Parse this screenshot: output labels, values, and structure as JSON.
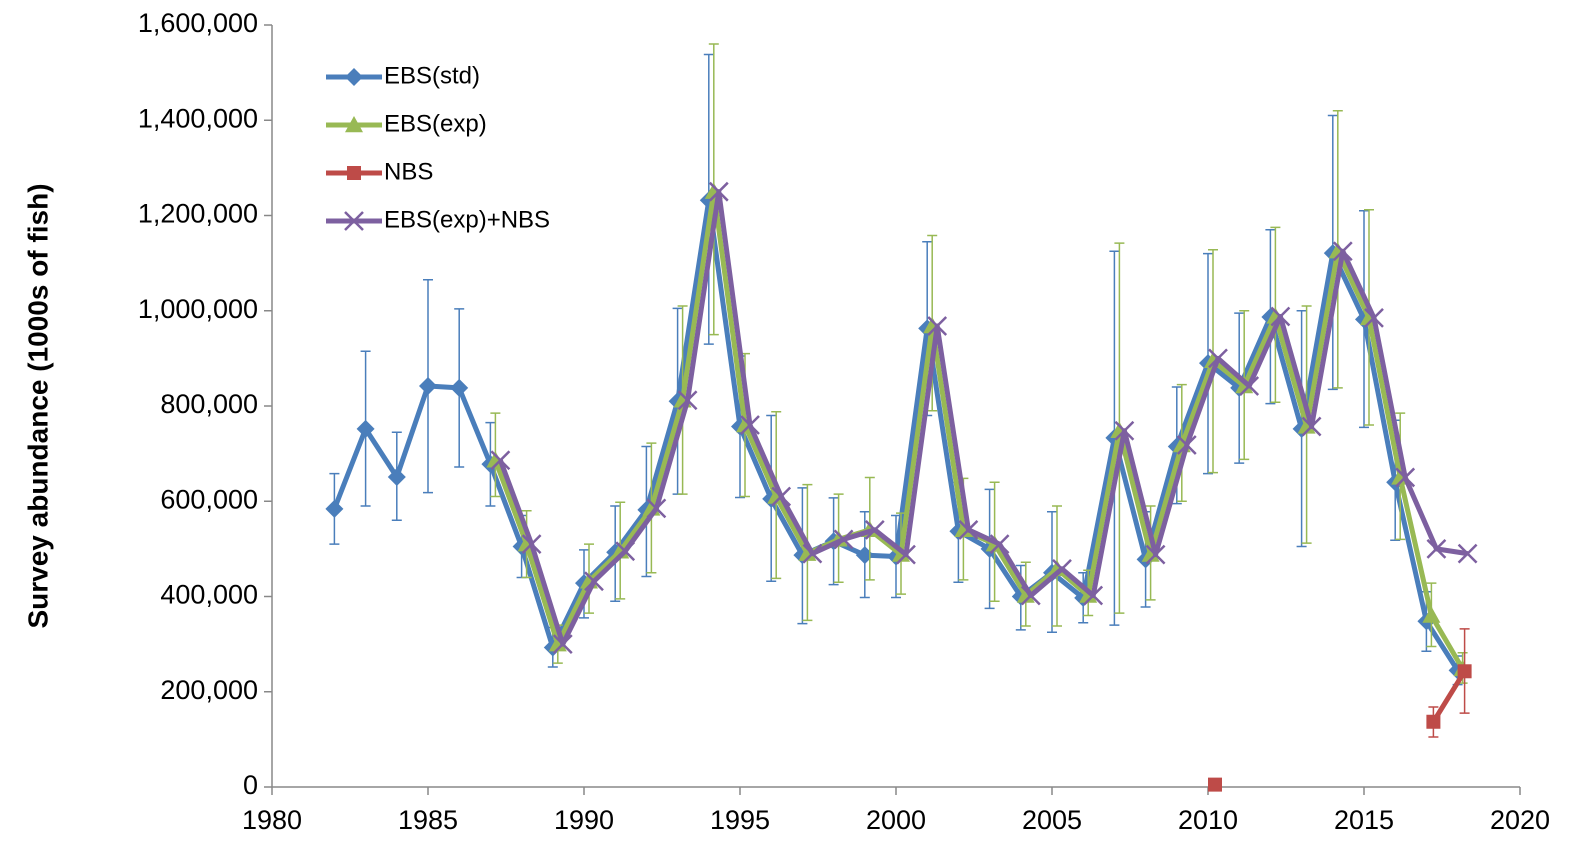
{
  "chart_data": {
    "type": "line",
    "ylabel": "Survey abundance (1000s of fish)",
    "xlim": [
      1980,
      2020
    ],
    "xticks": [
      1980,
      1985,
      1990,
      1995,
      2000,
      2005,
      2010,
      2015,
      2020
    ],
    "ylim": [
      0,
      1600000
    ],
    "yticks": [
      0,
      {
        "value": 200000,
        "label": "200,000"
      },
      {
        "value": 400000,
        "label": "400,000"
      },
      {
        "value": 600000,
        "label": "600,000"
      },
      {
        "value": 800000,
        "label": "800,000"
      },
      {
        "value": 1000000,
        "label": "1,000,000"
      },
      {
        "value": 1200000,
        "label": "1,200,000"
      },
      {
        "value": 1400000,
        "label": "1,400,000"
      },
      {
        "value": 1600000,
        "label": "1,600,000"
      }
    ],
    "grid": false,
    "legend": "upper left",
    "series": [
      {
        "name": "EBS(std)",
        "color": "#4a7ebb",
        "marker": "diamond",
        "x": [
          1982,
          1983,
          1984,
          1985,
          1986,
          1987,
          1988,
          1989,
          1990,
          1991,
          1992,
          1993,
          1994,
          1995,
          1996,
          1997,
          1998,
          1999,
          2000,
          2001,
          2002,
          2003,
          2004,
          2005,
          2006,
          2007,
          2008,
          2009,
          2010,
          2011,
          2012,
          2013,
          2014,
          2015,
          2016,
          2017,
          2018
        ],
        "values": [
          584000,
          752000,
          651000,
          842000,
          838000,
          678000,
          505000,
          293000,
          428000,
          493000,
          582000,
          810000,
          1232000,
          757000,
          605000,
          487000,
          516000,
          487000,
          484000,
          963000,
          537000,
          500000,
          400000,
          450000,
          397000,
          733000,
          478000,
          715000,
          890000,
          838000,
          987000,
          752000,
          1121000,
          982000,
          640000,
          348000,
          245000
        ],
        "ylow": [
          510000,
          590000,
          560000,
          618000,
          672000,
          590000,
          440000,
          252000,
          355000,
          390000,
          442000,
          615000,
          930000,
          608000,
          432000,
          343000,
          425000,
          398000,
          398000,
          780000,
          430000,
          375000,
          330000,
          325000,
          345000,
          340000,
          378000,
          595000,
          658000,
          680000,
          805000,
          505000,
          835000,
          755000,
          518000,
          285000,
          215000
        ],
        "yhigh": [
          658000,
          915000,
          745000,
          1065000,
          1004000,
          765000,
          570000,
          335000,
          498000,
          590000,
          715000,
          1005000,
          1538000,
          905000,
          780000,
          628000,
          607000,
          578000,
          570000,
          1145000,
          640000,
          625000,
          465000,
          578000,
          450000,
          1125000,
          578000,
          840000,
          1120000,
          995000,
          1170000,
          1000000,
          1410000,
          1210000,
          770000,
          410000,
          275000
        ]
      },
      {
        "name": "EBS(exp)",
        "color": "#98b954",
        "marker": "triangle",
        "x": [
          1987,
          1988,
          1989,
          1990,
          1991,
          1992,
          1993,
          1994,
          1995,
          1996,
          1997,
          1998,
          1999,
          2000,
          2001,
          2002,
          2003,
          2004,
          2005,
          2006,
          2007,
          2008,
          2009,
          2010,
          2011,
          2012,
          2013,
          2014,
          2015,
          2016,
          2017,
          2018
        ],
        "values": [
          686000,
          510000,
          300000,
          432000,
          495000,
          585000,
          812000,
          1250000,
          760000,
          610000,
          490000,
          520000,
          540000,
          488000,
          968000,
          540000,
          510000,
          402000,
          458000,
          402000,
          748000,
          488000,
          718000,
          895000,
          842000,
          988000,
          757000,
          1125000,
          985000,
          650000,
          360000,
          248000
        ],
        "ylow": [
          610000,
          440000,
          260000,
          365000,
          395000,
          450000,
          615000,
          950000,
          610000,
          438000,
          350000,
          430000,
          435000,
          405000,
          790000,
          435000,
          390000,
          338000,
          338000,
          360000,
          365000,
          393000,
          600000,
          660000,
          688000,
          808000,
          512000,
          838000,
          760000,
          520000,
          295000,
          218000
        ],
        "yhigh": [
          785000,
          580000,
          340000,
          510000,
          598000,
          722000,
          1010000,
          1560000,
          910000,
          788000,
          635000,
          615000,
          650000,
          575000,
          1158000,
          648000,
          640000,
          472000,
          590000,
          455000,
          1142000,
          590000,
          845000,
          1128000,
          1000000,
          1175000,
          1010000,
          1420000,
          1212000,
          785000,
          428000,
          282000
        ]
      },
      {
        "name": "NBS",
        "color": "#be4b48",
        "marker": "square",
        "x": [
          2010,
          2011,
          2012,
          2013,
          2014,
          2015,
          2016,
          2017,
          2018
        ],
        "values": [
          5000,
          null,
          null,
          null,
          null,
          null,
          null,
          137000,
          243000
        ],
        "ylow": [
          5000,
          null,
          null,
          null,
          null,
          null,
          null,
          105000,
          155000
        ],
        "yhigh": [
          5000,
          null,
          null,
          null,
          null,
          null,
          null,
          168000,
          332000
        ]
      },
      {
        "name": "EBS(exp)+NBS",
        "color": "#7d60a0",
        "marker": "x",
        "x": [
          1987,
          1988,
          1989,
          1990,
          1991,
          1992,
          1993,
          1994,
          1995,
          1996,
          1997,
          1998,
          1999,
          2000,
          2001,
          2002,
          2003,
          2004,
          2005,
          2006,
          2007,
          2008,
          2009,
          2010,
          2011,
          2012,
          2013,
          2014,
          2015,
          2016,
          2017,
          2018
        ],
        "values": [
          686000,
          510000,
          300000,
          432000,
          495000,
          585000,
          812000,
          1250000,
          760000,
          610000,
          490000,
          520000,
          540000,
          488000,
          968000,
          540000,
          510000,
          402000,
          458000,
          402000,
          748000,
          488000,
          718000,
          900000,
          842000,
          988000,
          757000,
          1125000,
          985000,
          650000,
          500000,
          490000
        ]
      }
    ]
  }
}
